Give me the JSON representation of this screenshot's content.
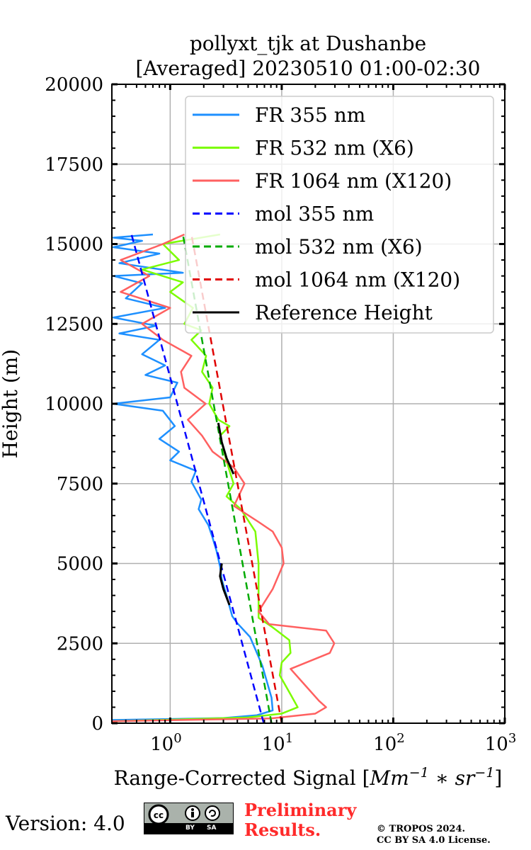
{
  "chart_data": {
    "type": "line",
    "title": [
      "pollyxt_tjk at Dushanbe",
      "[Averaged] 20230510 01:00-02:30"
    ],
    "xlabel": "Range-Corrected Signal [Mm^-1 * sr^-1]",
    "xlabel_parts": {
      "main": "Range-Corrected Signal [",
      "m1": "Mm",
      "e1": "−1",
      "mid": " ∗ ",
      "m2": "sr",
      "e2": "−1",
      "end": "]"
    },
    "ylabel": "Height (m)",
    "xscale": "log",
    "xlim": [
      0.3,
      1000
    ],
    "ylim": [
      0,
      20000
    ],
    "xticks": [
      {
        "base": "10",
        "exp": "0",
        "value": 1
      },
      {
        "base": "10",
        "exp": "1",
        "value": 10
      },
      {
        "base": "10",
        "exp": "2",
        "value": 100
      },
      {
        "base": "10",
        "exp": "3",
        "value": 1000
      }
    ],
    "yticks": [
      "0",
      "2500",
      "5000",
      "7500",
      "10000",
      "12500",
      "15000",
      "17500",
      "20000"
    ],
    "grid": true,
    "legend_position": "top-right",
    "series": [
      {
        "name": "FR 355 nm",
        "color": "#1e90ff",
        "dash": false,
        "points": [
          [
            0.3,
            100
          ],
          [
            3,
            160
          ],
          [
            6,
            250
          ],
          [
            8.3,
            400
          ],
          [
            8.1,
            800
          ],
          [
            6.7,
            1800
          ],
          [
            5.2,
            2700
          ],
          [
            4.0,
            3130
          ],
          [
            3.6,
            3350
          ],
          [
            3.2,
            4000
          ],
          [
            2.9,
            4500
          ],
          [
            2.8,
            4900
          ],
          [
            2.6,
            5400
          ],
          [
            2.4,
            5800
          ],
          [
            2.2,
            6200
          ],
          [
            1.8,
            6700
          ],
          [
            1.9,
            7000
          ],
          [
            1.55,
            7560
          ],
          [
            1.7,
            7900
          ],
          [
            1.0,
            8230
          ],
          [
            1.2,
            8500
          ],
          [
            0.8,
            8900
          ],
          [
            1.1,
            9300
          ],
          [
            0.86,
            9780
          ],
          [
            0.31,
            10000
          ],
          [
            1.0,
            10200
          ],
          [
            1.16,
            10660
          ],
          [
            0.6,
            10900
          ],
          [
            0.9,
            11200
          ],
          [
            0.56,
            11550
          ],
          [
            0.8,
            12000
          ],
          [
            0.35,
            12200
          ],
          [
            0.75,
            12440
          ],
          [
            0.31,
            12700
          ],
          [
            0.9,
            13000
          ],
          [
            0.4,
            13300
          ],
          [
            0.56,
            13770
          ],
          [
            0.31,
            14000
          ],
          [
            1.3,
            14100
          ],
          [
            0.35,
            14400
          ],
          [
            0.8,
            14700
          ],
          [
            0.31,
            14900
          ],
          [
            0.56,
            15100
          ],
          [
            0.31,
            15200
          ],
          [
            0.7,
            15300
          ]
        ]
      },
      {
        "name": "FR 532 nm (X6)",
        "color": "#7cfc00",
        "dash": false,
        "points": [
          [
            0.3,
            60
          ],
          [
            5,
            180
          ],
          [
            10,
            300
          ],
          [
            13.9,
            500
          ],
          [
            12,
            900
          ],
          [
            9.6,
            1500
          ],
          [
            10,
            1900
          ],
          [
            12,
            2200
          ],
          [
            11.7,
            2600
          ],
          [
            8.3,
            3000
          ],
          [
            6.2,
            3300
          ],
          [
            6.2,
            4000
          ],
          [
            6.2,
            5000
          ],
          [
            5.8,
            6000
          ],
          [
            4.3,
            6700
          ],
          [
            3.2,
            7100
          ],
          [
            3.7,
            7500
          ],
          [
            3.2,
            8200
          ],
          [
            2.8,
            9000
          ],
          [
            3.4,
            9300
          ],
          [
            2.7,
            9500
          ],
          [
            2.24,
            10000
          ],
          [
            2.4,
            10500
          ],
          [
            1.93,
            11000
          ],
          [
            2.1,
            11500
          ],
          [
            1.55,
            12000
          ],
          [
            1.9,
            12300
          ],
          [
            1.34,
            12500
          ],
          [
            1.6,
            13000
          ],
          [
            1.0,
            13500
          ],
          [
            1.3,
            13800
          ],
          [
            0.56,
            14200
          ],
          [
            1.2,
            14500
          ],
          [
            0.86,
            15000
          ],
          [
            2.8,
            15300
          ]
        ]
      },
      {
        "name": "FR 1064 nm (X120)",
        "color": "#ff6060",
        "dash": false,
        "points": [
          [
            0.3,
            60
          ],
          [
            8,
            150
          ],
          [
            20,
            300
          ],
          [
            25,
            500
          ],
          [
            21.6,
            700
          ],
          [
            16.1,
            1200
          ],
          [
            12,
            1700
          ],
          [
            27,
            2200
          ],
          [
            29.6,
            2500
          ],
          [
            25,
            2900
          ],
          [
            7.7,
            3100
          ],
          [
            6.2,
            3500
          ],
          [
            8.3,
            4200
          ],
          [
            10.4,
            5000
          ],
          [
            10,
            5500
          ],
          [
            8.3,
            6000
          ],
          [
            6.2,
            6300
          ],
          [
            3.73,
            6800
          ],
          [
            4.64,
            7500
          ],
          [
            3.73,
            8000
          ],
          [
            2.4,
            8500
          ],
          [
            1.93,
            9000
          ],
          [
            1.44,
            9500
          ],
          [
            2.08,
            10000
          ],
          [
            1.34,
            10500
          ],
          [
            1.25,
            11000
          ],
          [
            1.55,
            11500
          ],
          [
            0.86,
            12000
          ],
          [
            0.56,
            12500
          ],
          [
            1.0,
            13000
          ],
          [
            0.36,
            13500
          ],
          [
            0.65,
            14000
          ],
          [
            0.36,
            14500
          ],
          [
            0.86,
            15000
          ],
          [
            1.34,
            15300
          ]
        ]
      },
      {
        "name": "mol 355 nm",
        "color": "#0000ff",
        "dash": true,
        "points": [
          [
            6.9,
            0
          ],
          [
            0.45,
            15300
          ]
        ]
      },
      {
        "name": "mol 532 nm (X6)",
        "color": "#00aa00",
        "dash": true,
        "points": [
          [
            8.1,
            0
          ],
          [
            1.3,
            15300
          ]
        ]
      },
      {
        "name": "mol 1064 nm (X120)",
        "color": "#e00000",
        "dash": true,
        "points": [
          [
            10.0,
            0
          ],
          [
            1.55,
            15300
          ]
        ]
      },
      {
        "name": "Reference Height",
        "color": "#000000",
        "dash": false,
        "points": [
          [
            3.4,
            3700
          ],
          [
            3.0,
            4200
          ],
          [
            2.8,
            4600
          ],
          [
            2.9,
            5000
          ]
        ],
        "points2": [
          [
            3.7,
            7800
          ],
          [
            3.2,
            8300
          ],
          [
            2.9,
            8800
          ],
          [
            2.7,
            9400
          ]
        ]
      }
    ]
  },
  "footer": {
    "version": "Version: 4.0",
    "license_badge": "CC BY SA",
    "prelim1": "Preliminary",
    "prelim2": "Results.",
    "copy1": "© TROPOS 2024.",
    "copy2": "CC BY SA 4.0 License."
  }
}
